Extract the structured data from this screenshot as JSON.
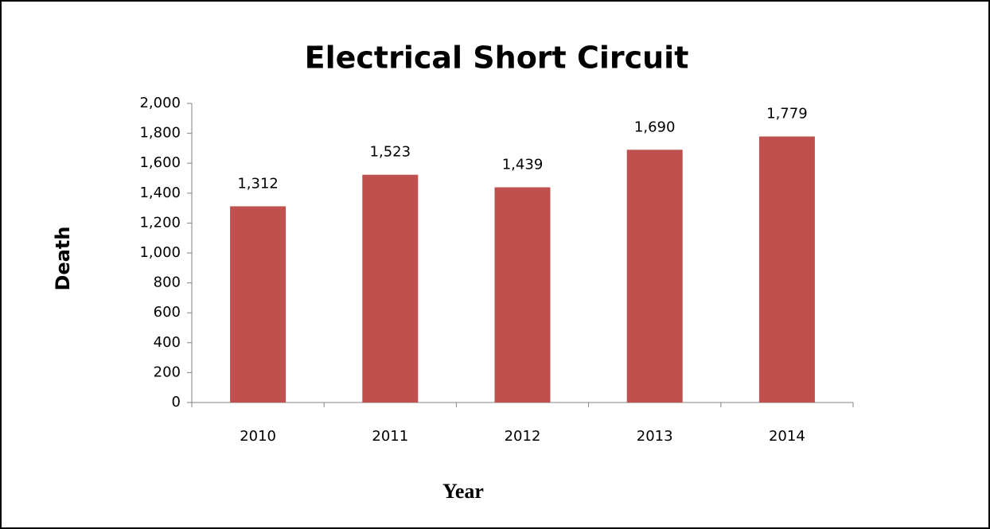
{
  "chart_data": {
    "type": "bar",
    "title": "Electrical Short Circuit",
    "x_label": "Year",
    "y_label": "Death",
    "categories": [
      "2010",
      "2011",
      "2012",
      "2013",
      "2014"
    ],
    "values": [
      1312,
      1523,
      1439,
      1690,
      1779
    ],
    "value_labels": [
      "1,312",
      "1,523",
      "1,439",
      "1,690",
      "1,779"
    ],
    "color": "#c0504d",
    "ylim": [
      0,
      2000
    ],
    "yticks": [
      0,
      200,
      400,
      600,
      800,
      {
        "value": 1000,
        "label": "1,000"
      },
      {
        "value": 1200,
        "label": "1,200"
      },
      {
        "value": 1400,
        "label": "1,400"
      },
      {
        "value": 1600,
        "label": "1,600"
      },
      {
        "value": 1800,
        "label": "1,800"
      },
      {
        "value": 2000,
        "label": "2,000"
      }
    ],
    "grid": false
  }
}
